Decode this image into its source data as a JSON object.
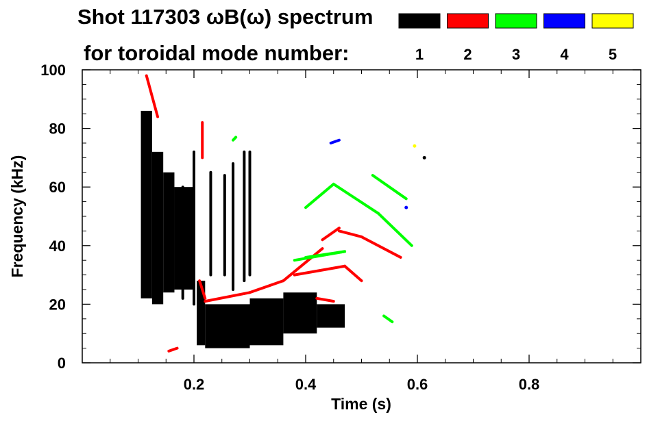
{
  "chart_data": {
    "type": "heatmap",
    "title_line1": "Shot 117303 ωB(ω) spectrum",
    "title_line2": "for toroidal mode number:",
    "xlabel": "Time (s)",
    "ylabel": "Frequency (kHz)",
    "xlim": [
      0,
      1.0
    ],
    "ylim": [
      0,
      100
    ],
    "x_ticks": [
      0.2,
      0.4,
      0.6,
      0.8
    ],
    "x_tick_labels": [
      "0.2",
      "0.4",
      "0.6",
      "0.8"
    ],
    "y_ticks": [
      0,
      20,
      40,
      60,
      80,
      100
    ],
    "y_tick_labels": [
      "0",
      "20",
      "40",
      "60",
      "80",
      "100"
    ],
    "legend": [
      {
        "label": "1",
        "color": "#000000"
      },
      {
        "label": "2",
        "color": "#ff0000"
      },
      {
        "label": "3",
        "color": "#00ff00"
      },
      {
        "label": "4",
        "color": "#0000ff"
      },
      {
        "label": "5",
        "color": "#ffff00"
      }
    ],
    "series": [
      {
        "mode": "1",
        "color": "#000000",
        "bands": [
          {
            "t": [
              0.105,
              0.125
            ],
            "f": [
              22,
              86
            ]
          },
          {
            "t": [
              0.125,
              0.145
            ],
            "f": [
              20,
              72
            ]
          },
          {
            "t": [
              0.145,
              0.165
            ],
            "f": [
              24,
              65
            ]
          },
          {
            "t": [
              0.165,
              0.2
            ],
            "f": [
              25,
              60
            ]
          },
          {
            "t": [
              0.205,
              0.22
            ],
            "f": [
              6,
              28
            ]
          },
          {
            "t": [
              0.22,
              0.3
            ],
            "f": [
              5,
              20
            ]
          },
          {
            "t": [
              0.3,
              0.36
            ],
            "f": [
              6,
              22
            ]
          },
          {
            "t": [
              0.36,
              0.42
            ],
            "f": [
              10,
              24
            ]
          },
          {
            "t": [
              0.42,
              0.47
            ],
            "f": [
              12,
              20
            ]
          }
        ],
        "lines": [
          {
            "t": [
              0.18,
              0.18
            ],
            "f": [
              22,
              60
            ]
          },
          {
            "t": [
              0.2,
              0.2
            ],
            "f": [
              20,
              72
            ]
          },
          {
            "t": [
              0.23,
              0.23
            ],
            "f": [
              30,
              65
            ]
          },
          {
            "t": [
              0.255,
              0.255
            ],
            "f": [
              30,
              64
            ]
          },
          {
            "t": [
              0.27,
              0.27
            ],
            "f": [
              25,
              68
            ]
          },
          {
            "t": [
              0.29,
              0.29
            ],
            "f": [
              28,
              72
            ]
          },
          {
            "t": [
              0.3,
              0.3
            ],
            "f": [
              30,
              72
            ]
          }
        ],
        "points": [
          {
            "t": [
              0.61,
              0.615
            ],
            "f": [
              69,
              71
            ]
          }
        ]
      },
      {
        "mode": "2",
        "color": "#ff0000",
        "lines": [
          {
            "t": [
              0.115,
              0.135
            ],
            "f": [
              98,
              84
            ]
          },
          {
            "t": [
              0.21,
              0.22
            ],
            "f": [
              28,
              22
            ]
          },
          {
            "t": [
              0.22,
              0.3
            ],
            "f": [
              21,
              24
            ]
          },
          {
            "t": [
              0.3,
              0.36
            ],
            "f": [
              24,
              28
            ]
          },
          {
            "t": [
              0.36,
              0.43
            ],
            "f": [
              28,
              39
            ]
          },
          {
            "t": [
              0.43,
              0.46
            ],
            "f": [
              42,
              46
            ]
          },
          {
            "t": [
              0.46,
              0.5
            ],
            "f": [
              45,
              43
            ]
          },
          {
            "t": [
              0.5,
              0.57
            ],
            "f": [
              43,
              36
            ]
          },
          {
            "t": [
              0.38,
              0.47
            ],
            "f": [
              30,
              33
            ]
          },
          {
            "t": [
              0.47,
              0.5
            ],
            "f": [
              33,
              28
            ]
          },
          {
            "t": [
              0.42,
              0.45
            ],
            "f": [
              22,
              21
            ]
          },
          {
            "t": [
              0.215,
              0.215
            ],
            "f": [
              70,
              82
            ]
          },
          {
            "t": [
              0.155,
              0.17
            ],
            "f": [
              4,
              5
            ]
          }
        ]
      },
      {
        "mode": "3",
        "color": "#00ff00",
        "lines": [
          {
            "t": [
              0.4,
              0.45
            ],
            "f": [
              53,
              61
            ]
          },
          {
            "t": [
              0.45,
              0.53
            ],
            "f": [
              61,
              51
            ]
          },
          {
            "t": [
              0.53,
              0.59
            ],
            "f": [
              51,
              40
            ]
          },
          {
            "t": [
              0.4,
              0.47
            ],
            "f": [
              36,
              38
            ]
          },
          {
            "t": [
              0.38,
              0.47
            ],
            "f": [
              35,
              38
            ]
          },
          {
            "t": [
              0.52,
              0.58
            ],
            "f": [
              64,
              56
            ]
          },
          {
            "t": [
              0.54,
              0.555
            ],
            "f": [
              16,
              14
            ]
          },
          {
            "t": [
              0.27,
              0.275
            ],
            "f": [
              76,
              77
            ]
          }
        ]
      },
      {
        "mode": "4",
        "color": "#0000ff",
        "lines": [
          {
            "t": [
              0.445,
              0.46
            ],
            "f": [
              75,
              76
            ]
          }
        ],
        "points": [
          {
            "t": [
              0.58,
              0.58
            ],
            "f": [
              53,
              53
            ]
          }
        ]
      },
      {
        "mode": "5",
        "color": "#ffff00",
        "points": [
          {
            "t": [
              0.595,
              0.595
            ],
            "f": [
              74,
              74
            ]
          }
        ]
      }
    ]
  }
}
